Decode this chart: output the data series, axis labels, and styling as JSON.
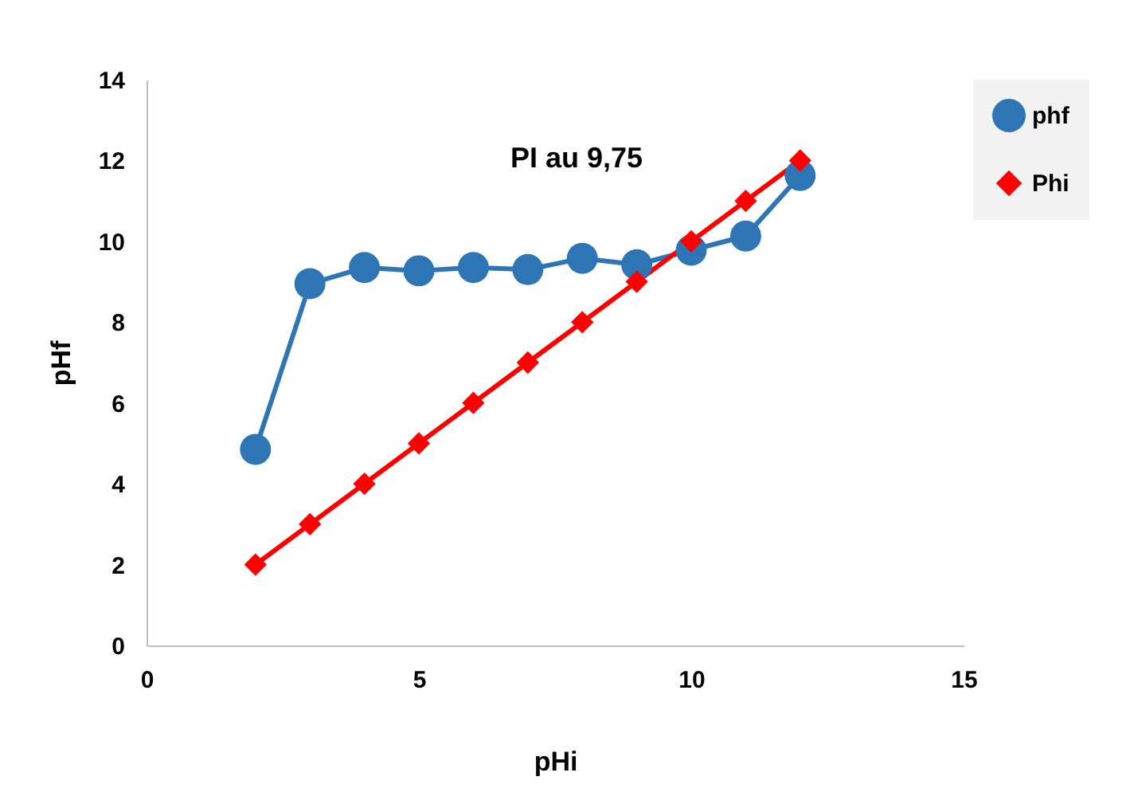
{
  "chart_data": {
    "type": "line",
    "xlabel": "pHi",
    "ylabel": "pHf",
    "annotations": [
      "PI au 9,75"
    ],
    "x": [
      2,
      3,
      4,
      5,
      6,
      7,
      8,
      9,
      10,
      11,
      12
    ],
    "series": [
      {
        "name": "phf",
        "color": "#2e75b6",
        "marker": "circle",
        "values": [
          4.85,
          8.95,
          9.35,
          9.27,
          9.35,
          9.3,
          9.58,
          9.42,
          9.78,
          10.13,
          11.63
        ]
      },
      {
        "name": "Phi",
        "color": "#ff0000",
        "marker": "diamond",
        "values": [
          2,
          3,
          4,
          5,
          6,
          7,
          8,
          9,
          10,
          11,
          12
        ]
      }
    ],
    "xlim": [
      0,
      15
    ],
    "xticks": [
      0,
      5,
      10,
      15
    ],
    "ylim": [
      0,
      14
    ],
    "yticks": [
      0,
      2,
      4,
      6,
      8,
      10,
      12,
      14
    ],
    "grid": false,
    "legend": "right"
  }
}
